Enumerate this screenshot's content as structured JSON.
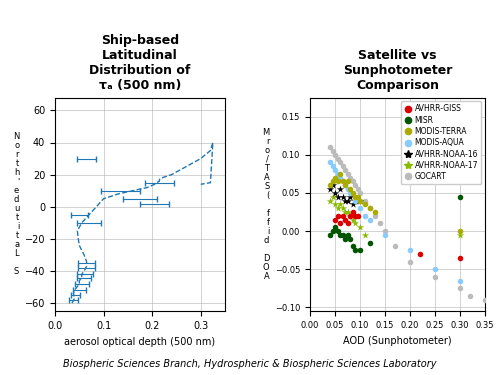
{
  "chart_data": [
    {
      "type": "line",
      "title": "Ship-based\nLatitudinal\nDistribution of\nτₐ (500 nm)",
      "xlabel": "aerosol optical depth (500 nm)",
      "ylabel": "N\no\nr\nt\nh\n'\ne\nd\nu\nt\ni\nt\na\nL\n\nS",
      "xlim": [
        0.0,
        0.35
      ],
      "ylim": [
        -65,
        68
      ],
      "xticks": [
        0.0,
        0.1,
        0.2,
        0.3
      ],
      "yticks": [
        {
          "value": -60,
          "label": "−60"
        },
        {
          "value": -40,
          "label": "−40"
        },
        {
          "value": -20,
          "label": "−20"
        },
        0,
        20,
        40,
        60
      ],
      "grid": true,
      "series": [
        {
          "type": "line",
          "line_style": "dashed",
          "x": [
            0.035,
            0.04,
            0.038,
            0.04,
            0.045,
            0.05,
            0.05,
            0.055,
            0.055,
            0.06,
            0.065,
            0.065,
            0.06,
            0.055,
            0.05,
            0.048,
            0.046,
            0.055,
            0.07,
            0.085,
            0.1,
            0.13,
            0.16,
            0.19,
            0.205,
            0.21,
            0.215,
            0.215,
            0.22,
            0.24,
            0.27,
            0.3,
            0.32,
            0.325,
            0.32,
            0.3
          ],
          "values": [
            -60,
            -57,
            -54,
            -52,
            -50,
            -48,
            -46,
            -44,
            -42,
            -40,
            -37,
            -34,
            -30,
            -27,
            -24,
            -20,
            -15,
            -10,
            -5,
            0,
            5,
            8,
            10,
            12,
            14,
            15,
            16,
            17,
            18,
            20,
            25,
            30,
            35,
            40,
            15,
            14
          ]
        },
        {
          "type": "errorbar",
          "x": [
            0.065,
            0.135,
            0.175,
            0.205,
            0.215,
            0.05,
            0.07,
            0.065,
            0.065,
            0.062,
            0.06,
            0.055,
            0.05,
            0.042,
            0.038
          ],
          "values": [
            30,
            10,
            5,
            2,
            15,
            -5,
            -10,
            -35,
            -38,
            -42,
            -44,
            -48,
            -52,
            -55,
            -58
          ],
          "xerr": [
            0.02,
            0.04,
            0.035,
            0.03,
            0.03,
            0.018,
            0.025,
            0.018,
            0.018,
            0.016,
            0.015,
            0.014,
            0.013,
            0.01,
            0.009
          ]
        }
      ]
    },
    {
      "type": "scatter",
      "title": "Satellite vs\nSunphotometer\nComparison",
      "xlabel": "AOD (Sunphotometer)",
      "ylabel": "M\nr\no\n/\nT\nA\nS\n(\n \nf\nf\ni\nd\n \nD\nO\nA",
      "xlim": [
        0.0,
        0.35
      ],
      "ylim": [
        -0.105,
        0.175
      ],
      "xticks": [
        {
          "value": 0.0,
          "label": "0.00"
        },
        {
          "value": 0.05,
          "label": "0.05"
        },
        {
          "value": 0.1,
          "label": "0.10"
        },
        {
          "value": 0.15,
          "label": "0.15"
        },
        {
          "value": 0.2,
          "label": "0.20"
        },
        {
          "value": 0.25,
          "label": "0.25"
        },
        {
          "value": 0.3,
          "label": "0.30"
        },
        {
          "value": 0.35,
          "label": "0.35"
        }
      ],
      "yticks": [
        {
          "value": -0.1,
          "label": "−0.10"
        },
        {
          "value": -0.05,
          "label": "−0.05"
        },
        {
          "value": 0.0,
          "label": "0.00"
        },
        {
          "value": 0.05,
          "label": "0.05"
        },
        {
          "value": 0.1,
          "label": "0.10"
        },
        {
          "value": 0.15,
          "label": "0.15"
        }
      ],
      "grid": true,
      "legend": "upper right",
      "series": [
        {
          "name": "AVHRR-GISS",
          "color": "#dd0000",
          "marker": "circle",
          "x": [
            0.05,
            0.055,
            0.06,
            0.065,
            0.07,
            0.075,
            0.08,
            0.085,
            0.09,
            0.095,
            0.22,
            0.3
          ],
          "values": [
            0.015,
            0.02,
            0.01,
            0.02,
            0.015,
            0.01,
            0.02,
            0.025,
            0.02,
            0.02,
            -0.03,
            -0.035
          ]
        },
        {
          "name": "MISR",
          "color": "#005500",
          "marker": "circle",
          "x": [
            0.04,
            0.045,
            0.05,
            0.055,
            0.06,
            0.065,
            0.07,
            0.075,
            0.08,
            0.085,
            0.09,
            0.1,
            0.12,
            0.3
          ],
          "values": [
            -0.005,
            0.0,
            0.005,
            0.0,
            -0.005,
            -0.005,
            -0.01,
            -0.005,
            -0.01,
            -0.02,
            -0.025,
            -0.025,
            -0.015,
            0.045
          ]
        },
        {
          "name": "MODIS-TERRA",
          "color": "#aaaa00",
          "marker": "circle",
          "x": [
            0.04,
            0.045,
            0.05,
            0.055,
            0.06,
            0.065,
            0.07,
            0.075,
            0.08,
            0.085,
            0.09,
            0.095,
            0.1,
            0.11,
            0.12,
            0.13,
            0.3
          ],
          "values": [
            0.06,
            0.065,
            0.07,
            0.065,
            0.075,
            0.065,
            0.06,
            0.065,
            0.055,
            0.05,
            0.045,
            0.045,
            0.04,
            0.035,
            0.03,
            0.025,
            0.0
          ]
        },
        {
          "name": "MODIS-AQUA",
          "color": "#88ccff",
          "marker": "circle",
          "x": [
            0.04,
            0.045,
            0.05,
            0.055,
            0.06,
            0.065,
            0.07,
            0.075,
            0.08,
            0.09,
            0.1,
            0.11,
            0.12,
            0.15,
            0.2,
            0.25,
            0.3
          ],
          "values": [
            0.09,
            0.085,
            0.08,
            0.075,
            0.07,
            0.065,
            0.06,
            0.055,
            0.05,
            0.04,
            0.03,
            0.02,
            0.015,
            -0.005,
            -0.025,
            -0.05,
            -0.065
          ]
        },
        {
          "name": "AVHRR-NOAA-16",
          "color": "#000000",
          "marker": "star",
          "x": [
            0.04,
            0.045,
            0.05,
            0.055,
            0.06,
            0.065,
            0.07,
            0.075,
            0.08,
            0.085,
            0.09,
            0.095,
            0.1
          ],
          "values": [
            0.055,
            0.06,
            0.05,
            0.045,
            0.055,
            0.045,
            0.04,
            0.04,
            0.045,
            0.035,
            0.04,
            0.04,
            0.04
          ]
        },
        {
          "name": "AVHRR-NOAA-17",
          "color": "#88bb00",
          "marker": "star",
          "x": [
            0.04,
            0.045,
            0.05,
            0.055,
            0.06,
            0.065,
            0.07,
            0.075,
            0.08,
            0.085,
            0.09,
            0.1,
            0.11,
            0.3
          ],
          "values": [
            0.04,
            0.045,
            0.035,
            0.03,
            0.035,
            0.03,
            0.025,
            0.025,
            0.02,
            0.015,
            0.01,
            0.005,
            -0.005,
            -0.005
          ]
        },
        {
          "name": "GOCART",
          "color": "#bbbbbb",
          "marker": "circle",
          "x": [
            0.04,
            0.045,
            0.05,
            0.055,
            0.06,
            0.065,
            0.07,
            0.075,
            0.08,
            0.085,
            0.09,
            0.095,
            0.1,
            0.11,
            0.12,
            0.13,
            0.14,
            0.15,
            0.17,
            0.2,
            0.25,
            0.3,
            0.32,
            0.35
          ],
          "values": [
            0.11,
            0.105,
            0.1,
            0.095,
            0.09,
            0.085,
            0.08,
            0.075,
            0.07,
            0.065,
            0.06,
            0.055,
            0.05,
            0.04,
            0.03,
            0.02,
            0.01,
            0.0,
            -0.02,
            -0.04,
            -0.06,
            -0.075,
            -0.085,
            -0.09
          ]
        }
      ]
    }
  ],
  "annotation": "Biospheric Sciences Branch, Hydrospheric & Biospheric Sciences Laboratory"
}
